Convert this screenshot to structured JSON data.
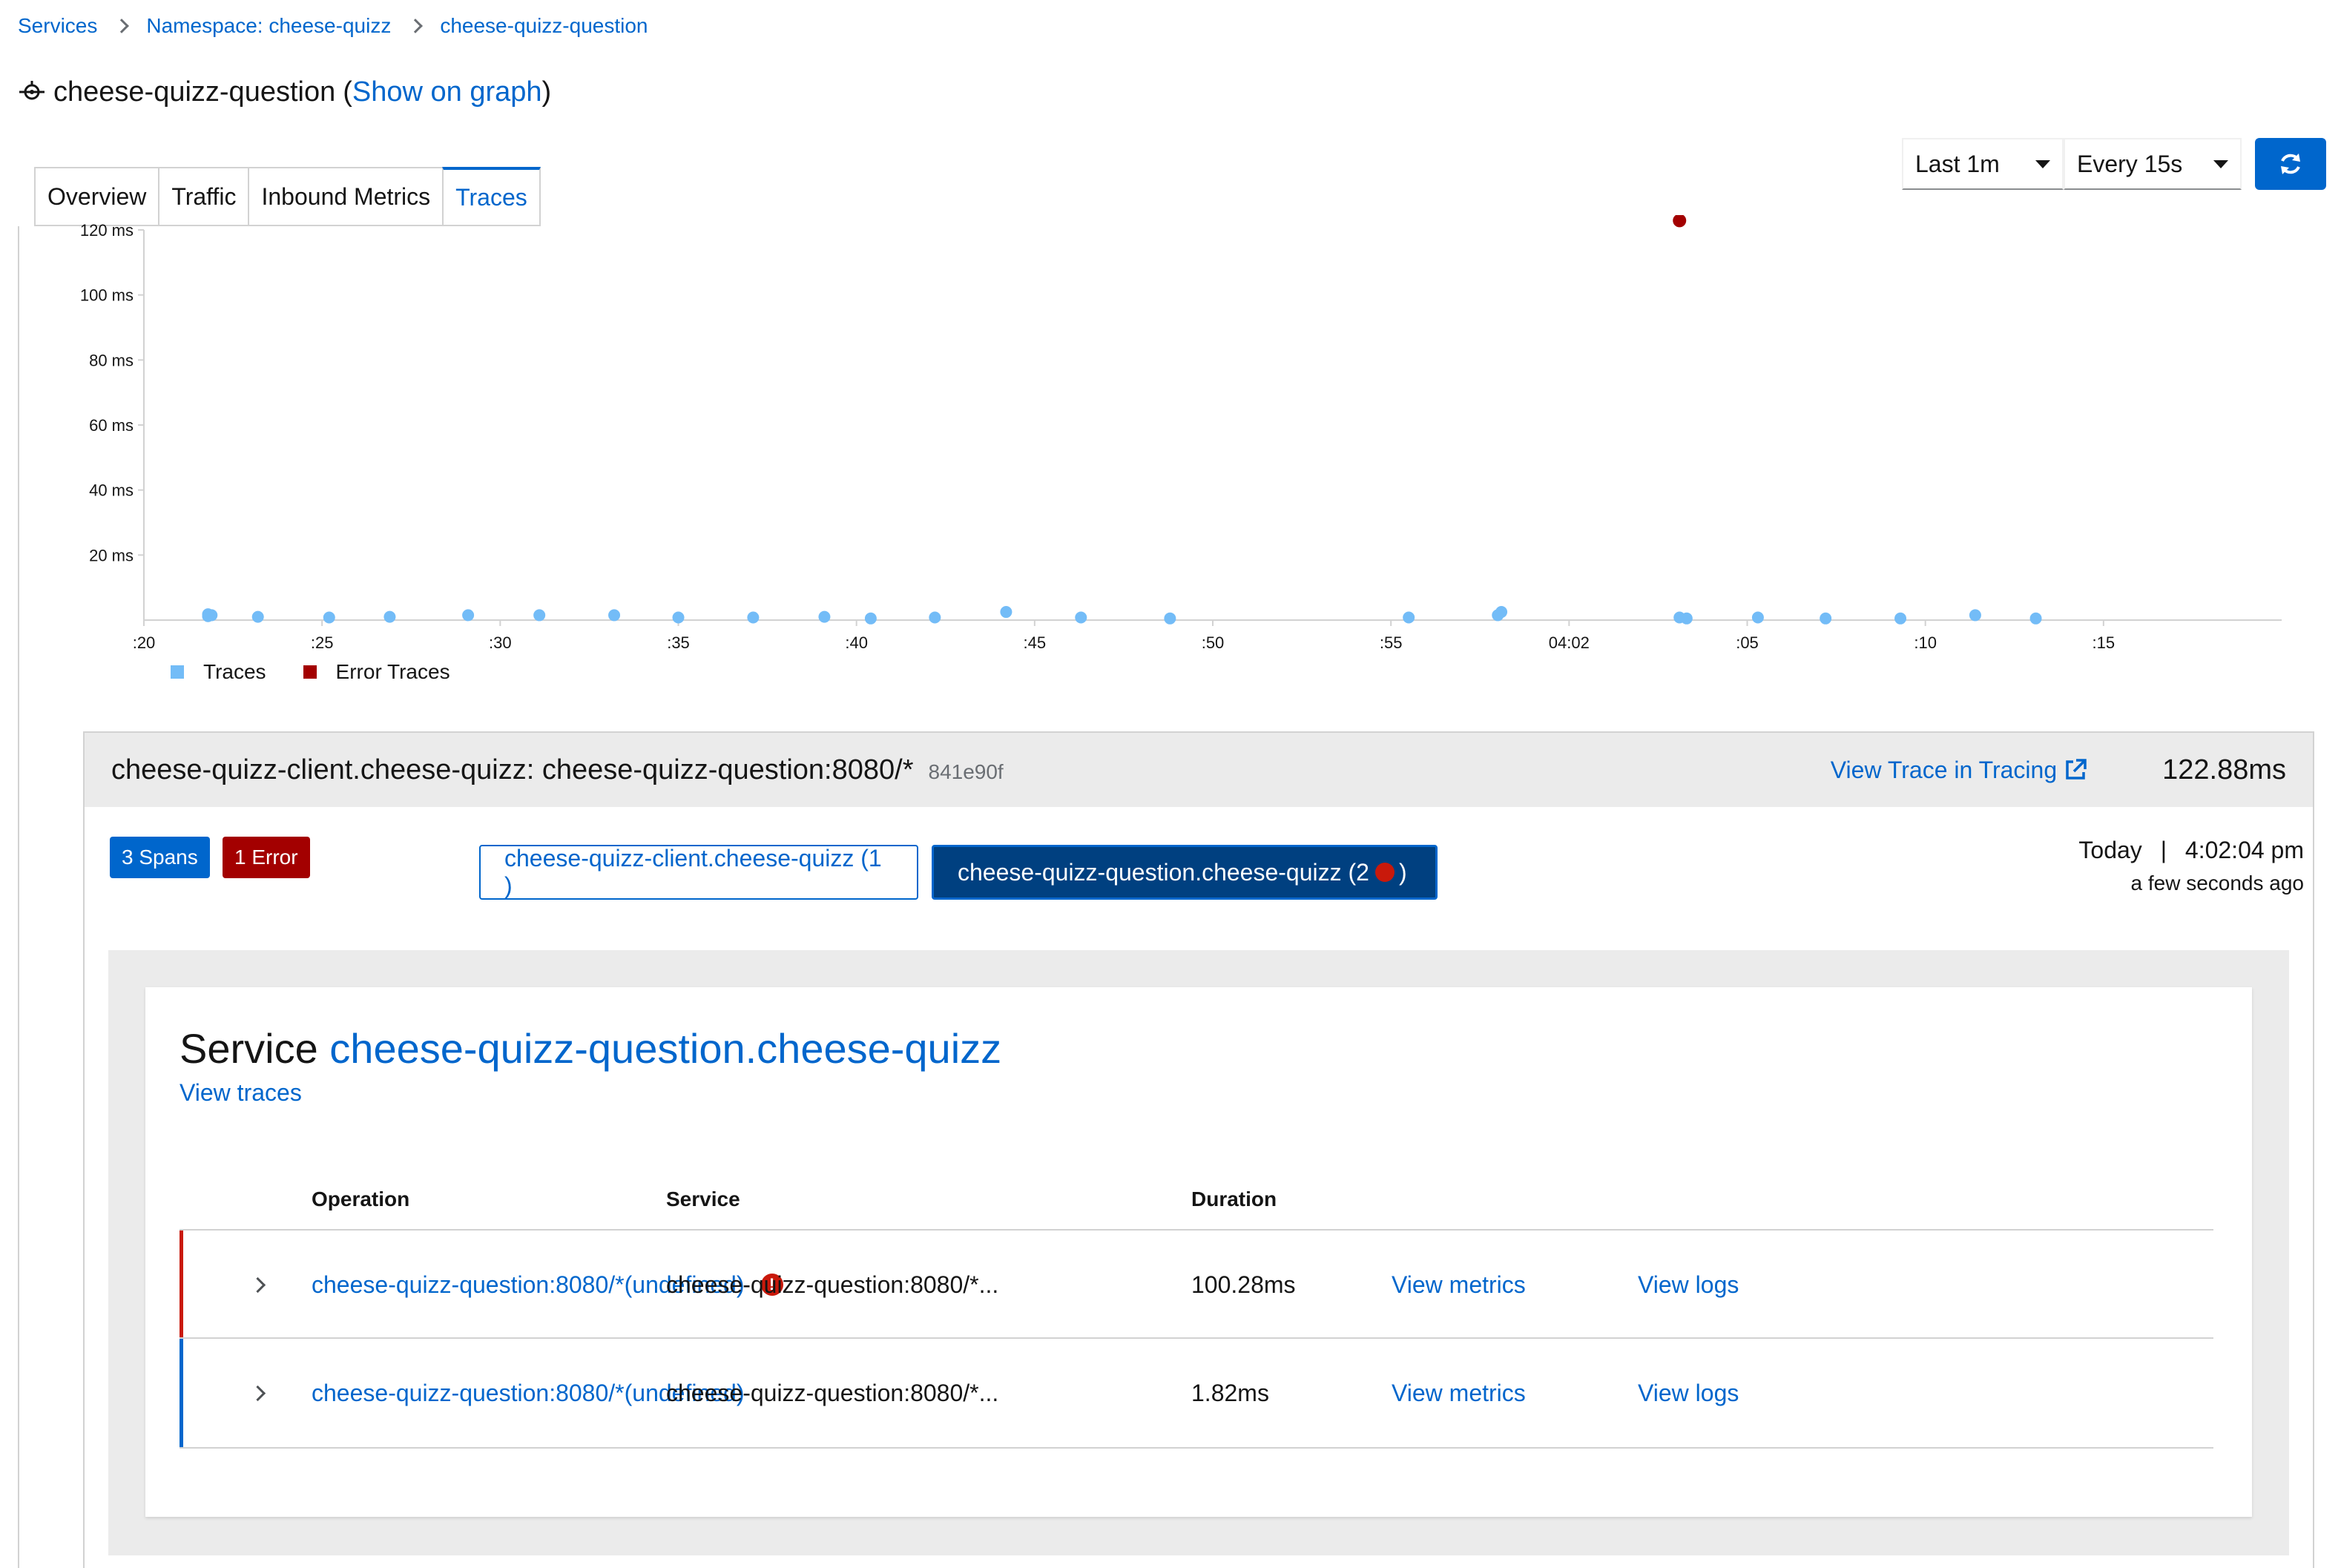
{
  "breadcrumb": {
    "items": [
      "Services",
      "Namespace: cheese-quizz",
      "cheese-quizz-question"
    ]
  },
  "title": {
    "name": "cheese-quizz-question",
    "open_paren": "(",
    "graph_link": "Show on graph",
    "close_paren": ")",
    "icon": "service-icon"
  },
  "tabs": [
    "Overview",
    "Traffic",
    "Inbound Metrics",
    "Traces"
  ],
  "active_tab": "Traces",
  "controls": {
    "duration": "Last 1m",
    "refresh_interval": "Every 15s",
    "refresh_icon": "refresh-icon"
  },
  "chart_data": {
    "type": "scatter",
    "y_ticks": [
      "20 ms",
      "40 ms",
      "60 ms",
      "80 ms",
      "100 ms",
      "120 ms"
    ],
    "x_ticks": [
      ":20",
      ":25",
      ":30",
      ":35",
      ":40",
      ":45",
      ":50",
      ":55",
      "04:02",
      ":05",
      ":10",
      ":15"
    ],
    "ylim": [
      0,
      120
    ],
    "xlim": [
      20,
      80
    ],
    "x_unit": "seconds past 04:01",
    "series": [
      {
        "name": "Traces",
        "color": "#73bcf7",
        "points": [
          [
            21.8,
            1.8
          ],
          [
            21.8,
            1.2
          ],
          [
            21.9,
            1.5
          ],
          [
            23.2,
            1.0
          ],
          [
            25.2,
            0.8
          ],
          [
            26.9,
            1.0
          ],
          [
            29.1,
            1.5
          ],
          [
            31.1,
            1.5
          ],
          [
            33.2,
            1.5
          ],
          [
            35.0,
            0.8
          ],
          [
            37.1,
            0.8
          ],
          [
            39.1,
            1.0
          ],
          [
            40.4,
            0.5
          ],
          [
            42.2,
            0.8
          ],
          [
            44.2,
            2.5
          ],
          [
            46.3,
            0.8
          ],
          [
            48.8,
            0.5
          ],
          [
            55.5,
            0.8
          ],
          [
            58.0,
            1.5
          ],
          [
            58.1,
            2.5
          ],
          [
            63.1,
            0.8
          ],
          [
            63.3,
            0.5
          ],
          [
            65.3,
            0.8
          ],
          [
            67.2,
            0.5
          ],
          [
            69.3,
            0.5
          ],
          [
            71.4,
            1.5
          ],
          [
            73.1,
            0.5
          ]
        ]
      },
      {
        "name": "Error Traces",
        "color": "#a30000",
        "points": [
          [
            63.1,
            122.88
          ]
        ]
      }
    ],
    "legend": [
      "Traces",
      "Error Traces"
    ],
    "legend_placement": "bottom-left",
    "grid": false
  },
  "trace": {
    "name": "cheese-quizz-client.cheese-quizz: cheese-quizz-question:8080/*",
    "id": "841e90f",
    "view_link": "View Trace in Tracing",
    "duration": "122.88ms",
    "spans_badge": "3 Spans",
    "error_badge": "1 Error",
    "services": [
      {
        "label": "cheese-quizz-client.cheese-quizz (1 )"
      },
      {
        "label_prefix": "cheese-quizz-question.cheese-quizz (2 ",
        "label_suffix": ")"
      }
    ],
    "date": "Today",
    "time_sep": "|",
    "time": "4:02:04 pm",
    "relative": "a few seconds ago"
  },
  "service_panel": {
    "word": "Service",
    "service_name": "cheese-quizz-question.cheese-quizz",
    "view_traces": "View traces",
    "headers": [
      "Operation",
      "Service",
      "Duration"
    ],
    "rows": [
      {
        "operation": "cheese-quizz-question:8080/*(undefined)",
        "error": true,
        "service": "cheese-quizz-question:8080/*...",
        "duration": "100.28ms",
        "metrics": "View metrics",
        "logs": "View logs",
        "bar_color": "#c9190b"
      },
      {
        "operation": "cheese-quizz-question:8080/*(undefined)",
        "error": false,
        "service": "cheese-quizz-question:8080/*...",
        "duration": "1.82ms",
        "metrics": "View metrics",
        "logs": "View logs",
        "bar_color": "#0066cc"
      }
    ]
  }
}
